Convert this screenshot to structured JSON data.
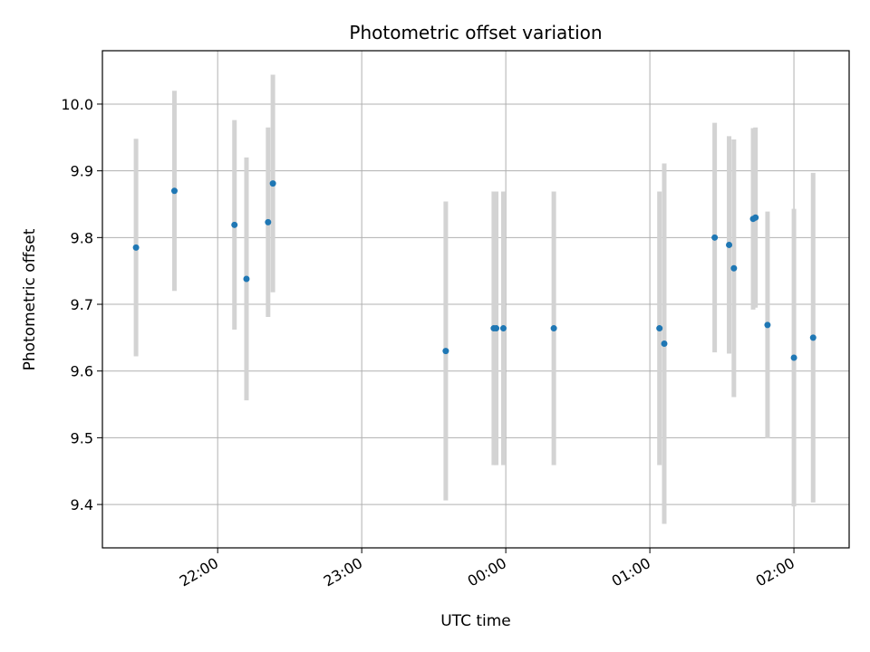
{
  "chart_data": {
    "type": "scatter",
    "title": "Photometric offset variation",
    "xlabel": "UTC time",
    "ylabel": "Photometric offset",
    "x_axis": {
      "kind": "time",
      "range": [
        "21:12",
        "02:23"
      ],
      "ticks": [
        "22:00",
        "23:00",
        "00:00",
        "01:00",
        "02:00"
      ]
    },
    "y_axis": {
      "range": [
        9.335,
        10.08
      ],
      "ticks": [
        "9.4",
        "9.5",
        "9.6",
        "9.7",
        "9.8",
        "9.9",
        "10.0"
      ]
    },
    "grid": true,
    "colors": {
      "point": "#1f77b4",
      "errorbar": "#d3d3d3",
      "grid": "#b0b0b0"
    },
    "points": [
      {
        "x": "21:26",
        "y": 9.785,
        "err": 0.163
      },
      {
        "x": "21:42",
        "y": 9.87,
        "err": 0.15
      },
      {
        "x": "22:07",
        "y": 9.819,
        "err": 0.157
      },
      {
        "x": "22:12",
        "y": 9.738,
        "err": 0.182
      },
      {
        "x": "22:21",
        "y": 9.823,
        "err": 0.142
      },
      {
        "x": "22:23",
        "y": 9.881,
        "err": 0.163
      },
      {
        "x": "23:35",
        "y": 9.63,
        "err": 0.224
      },
      {
        "x": "23:55",
        "y": 9.664,
        "err": 0.205
      },
      {
        "x": "23:56",
        "y": 9.664,
        "err": 0.205
      },
      {
        "x": "23:59",
        "y": 9.664,
        "err": 0.205
      },
      {
        "x": "00:20",
        "y": 9.664,
        "err": 0.205
      },
      {
        "x": "01:04",
        "y": 9.664,
        "err": 0.205
      },
      {
        "x": "01:06",
        "y": 9.641,
        "err": 0.27
      },
      {
        "x": "01:27",
        "y": 9.8,
        "err": 0.172
      },
      {
        "x": "01:33",
        "y": 9.789,
        "err": 0.163
      },
      {
        "x": "01:35",
        "y": 9.754,
        "err": 0.193
      },
      {
        "x": "01:43",
        "y": 9.828,
        "err": 0.136
      },
      {
        "x": "01:44",
        "y": 9.83,
        "err": 0.135
      },
      {
        "x": "01:49",
        "y": 9.669,
        "err": 0.17
      },
      {
        "x": "02:00",
        "y": 9.62,
        "err": 0.223
      },
      {
        "x": "02:08",
        "y": 9.65,
        "err": 0.247
      }
    ]
  }
}
